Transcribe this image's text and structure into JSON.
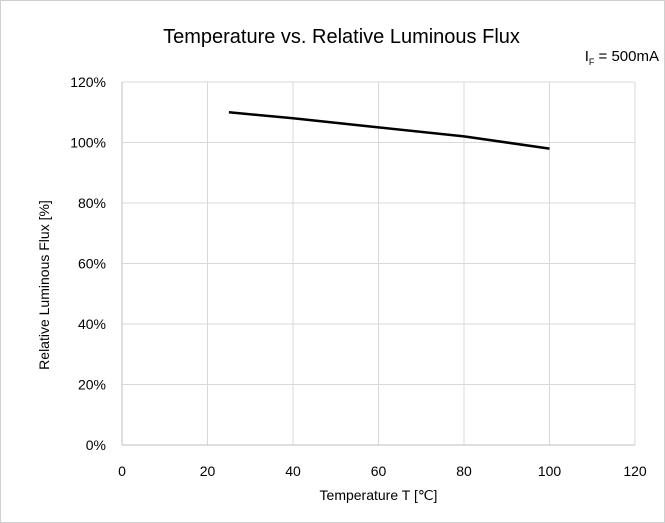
{
  "chart_data": {
    "type": "line",
    "title": "Temperature vs. Relative Luminous Flux",
    "condition": {
      "main": "I",
      "sub": "F",
      "rest": " = 500mA"
    },
    "xlabel": "Temperature T [℃]",
    "ylabel": "Relative Luminous Flux  [%]",
    "xlim": [
      0,
      120
    ],
    "ylim": [
      0,
      120
    ],
    "x_ticks": [
      "0",
      "20",
      "40",
      "60",
      "80",
      "100",
      "120"
    ],
    "y_ticks": [
      "0%",
      "20%",
      "40%",
      "60%",
      "80%",
      "100%",
      "120%"
    ],
    "grid": true,
    "series": [
      {
        "x": [
          25,
          40,
          60,
          80,
          100
        ],
        "y": [
          110,
          108,
          105,
          102,
          98
        ],
        "color": "#000000"
      }
    ]
  }
}
